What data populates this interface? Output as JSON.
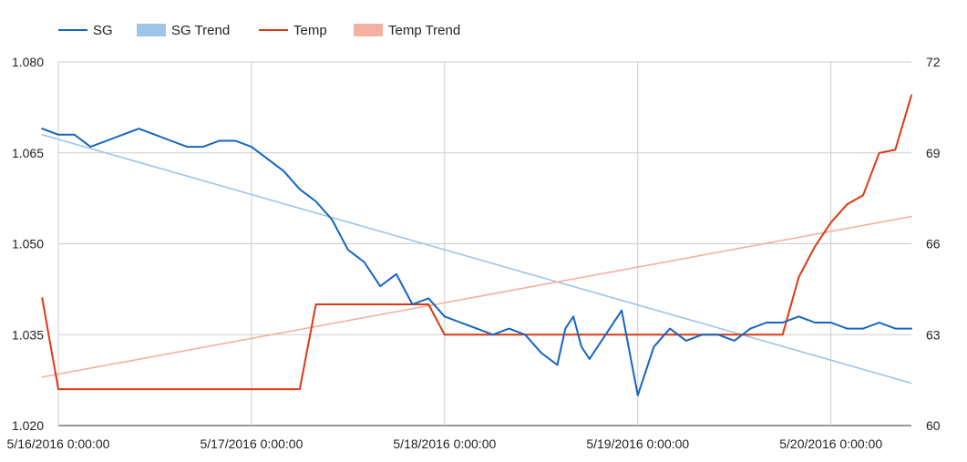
{
  "chart_data": {
    "type": "line",
    "legend": {
      "position": "top-left",
      "entries": [
        {
          "key": "sg",
          "label": "SG",
          "color": "#1565c0",
          "style": "line"
        },
        {
          "key": "sg_trend",
          "label": "SG Trend",
          "color": "#9fc5e8",
          "style": "swatch"
        },
        {
          "key": "temp",
          "label": "Temp",
          "color": "#dc3912",
          "style": "line"
        },
        {
          "key": "temp_trend",
          "label": "Temp Trend",
          "color": "#f4b0a0",
          "style": "swatch"
        }
      ]
    },
    "x_axis": {
      "type": "date",
      "range": [
        "5/16/2016 0:00:00",
        "5/20/2016 10:00:00"
      ],
      "ticks": [
        "5/16/2016 0:00:00",
        "5/17/2016 0:00:00",
        "5/18/2016 0:00:00",
        "5/19/2016 0:00:00",
        "5/20/2016 0:00:00"
      ]
    },
    "y_axis_left": {
      "range": [
        1.02,
        1.08
      ],
      "ticks": [
        "1.020",
        "1.035",
        "1.050",
        "1.065",
        "1.080"
      ]
    },
    "y_axis_right": {
      "range": [
        60,
        72
      ],
      "ticks": [
        "60",
        "63",
        "66",
        "69",
        "72"
      ]
    },
    "grid": true,
    "series": [
      {
        "key": "sg",
        "name": "SG",
        "axis": "left",
        "color": "#1565c0",
        "x": [
          "5/15/2016 22:00",
          "5/16/2016 0:00",
          "5/16/2016 2:00",
          "5/16/2016 4:00",
          "5/16/2016 6:00",
          "5/16/2016 8:00",
          "5/16/2016 10:00",
          "5/16/2016 12:00",
          "5/16/2016 14:00",
          "5/16/2016 16:00",
          "5/16/2016 18:00",
          "5/16/2016 20:00",
          "5/16/2016 22:00",
          "5/17/2016 0:00",
          "5/17/2016 2:00",
          "5/17/2016 4:00",
          "5/17/2016 6:00",
          "5/17/2016 8:00",
          "5/17/2016 10:00",
          "5/17/2016 12:00",
          "5/17/2016 14:00",
          "5/17/2016 16:00",
          "5/17/2016 18:00",
          "5/17/2016 20:00",
          "5/17/2016 22:00",
          "5/18/2016 0:00",
          "5/18/2016 2:00",
          "5/18/2016 4:00",
          "5/18/2016 6:00",
          "5/18/2016 8:00",
          "5/18/2016 10:00",
          "5/18/2016 12:00",
          "5/18/2016 14:00",
          "5/18/2016 15:00",
          "5/18/2016 16:00",
          "5/18/2016 17:00",
          "5/18/2016 18:00",
          "5/18/2016 20:00",
          "5/18/2016 22:00",
          "5/19/2016 0:00",
          "5/19/2016 2:00",
          "5/19/2016 4:00",
          "5/19/2016 6:00",
          "5/19/2016 8:00",
          "5/19/2016 10:00",
          "5/19/2016 12:00",
          "5/19/2016 14:00",
          "5/19/2016 16:00",
          "5/19/2016 18:00",
          "5/19/2016 20:00",
          "5/19/2016 22:00",
          "5/20/2016 0:00",
          "5/20/2016 2:00",
          "5/20/2016 4:00",
          "5/20/2016 6:00",
          "5/20/2016 8:00",
          "5/20/2016 10:00"
        ],
        "y": [
          1.069,
          1.068,
          1.068,
          1.066,
          1.067,
          1.068,
          1.069,
          1.068,
          1.067,
          1.066,
          1.066,
          1.067,
          1.067,
          1.066,
          1.064,
          1.062,
          1.059,
          1.057,
          1.054,
          1.049,
          1.047,
          1.043,
          1.045,
          1.04,
          1.041,
          1.038,
          1.037,
          1.036,
          1.035,
          1.036,
          1.035,
          1.032,
          1.03,
          1.036,
          1.038,
          1.033,
          1.031,
          1.035,
          1.039,
          1.025,
          1.033,
          1.036,
          1.034,
          1.035,
          1.035,
          1.034,
          1.036,
          1.037,
          1.037,
          1.038,
          1.037,
          1.037,
          1.036,
          1.036,
          1.037,
          1.036,
          1.036
        ]
      },
      {
        "key": "sg_trend",
        "name": "SG Trend",
        "axis": "left",
        "color": "#9fc5e8",
        "x": [
          "5/15/2016 22:00",
          "5/20/2016 10:00"
        ],
        "y": [
          1.068,
          1.027
        ]
      },
      {
        "key": "temp",
        "name": "Temp",
        "axis": "right",
        "color": "#dc3912",
        "x": [
          "5/15/2016 22:00",
          "5/16/2016 0:00",
          "5/16/2016 2:00",
          "5/16/2016 4:00",
          "5/16/2016 6:00",
          "5/16/2016 8:00",
          "5/16/2016 10:00",
          "5/16/2016 12:00",
          "5/16/2016 14:00",
          "5/16/2016 16:00",
          "5/16/2016 18:00",
          "5/16/2016 20:00",
          "5/16/2016 22:00",
          "5/17/2016 0:00",
          "5/17/2016 2:00",
          "5/17/2016 4:00",
          "5/17/2016 6:00",
          "5/17/2016 8:00",
          "5/17/2016 10:00",
          "5/17/2016 12:00",
          "5/17/2016 14:00",
          "5/17/2016 16:00",
          "5/17/2016 18:00",
          "5/17/2016 20:00",
          "5/17/2016 22:00",
          "5/18/2016 0:00",
          "5/18/2016 2:00",
          "5/18/2016 4:00",
          "5/18/2016 6:00",
          "5/18/2016 8:00",
          "5/18/2016 10:00",
          "5/18/2016 12:00",
          "5/18/2016 14:00",
          "5/18/2016 16:00",
          "5/18/2016 18:00",
          "5/18/2016 20:00",
          "5/18/2016 22:00",
          "5/19/2016 0:00",
          "5/19/2016 2:00",
          "5/19/2016 4:00",
          "5/19/2016 6:00",
          "5/19/2016 8:00",
          "5/19/2016 10:00",
          "5/19/2016 12:00",
          "5/19/2016 14:00",
          "5/19/2016 16:00",
          "5/19/2016 18:00",
          "5/19/2016 20:00",
          "5/19/2016 22:00",
          "5/20/2016 0:00",
          "5/20/2016 2:00",
          "5/20/2016 4:00",
          "5/20/2016 6:00",
          "5/20/2016 8:00",
          "5/20/2016 10:00"
        ],
        "y": [
          64.2,
          61.2,
          61.2,
          61.2,
          61.2,
          61.2,
          61.2,
          61.2,
          61.2,
          61.2,
          61.2,
          61.2,
          61.2,
          61.2,
          61.2,
          61.2,
          61.2,
          64.0,
          64.0,
          64.0,
          64.0,
          64.0,
          64.0,
          64.0,
          64.0,
          63.0,
          63.0,
          63.0,
          63.0,
          63.0,
          63.0,
          63.0,
          63.0,
          63.0,
          63.0,
          63.0,
          63.0,
          63.0,
          63.0,
          63.0,
          63.0,
          63.0,
          63.0,
          63.0,
          63.0,
          63.0,
          63.0,
          64.9,
          65.9,
          66.7,
          67.3,
          67.6,
          69.0,
          69.1,
          70.9
        ]
      },
      {
        "key": "temp_trend",
        "name": "Temp Trend",
        "axis": "right",
        "color": "#f4b0a0",
        "x": [
          "5/15/2016 22:00",
          "5/20/2016 10:00"
        ],
        "y": [
          61.6,
          66.9
        ]
      }
    ]
  }
}
